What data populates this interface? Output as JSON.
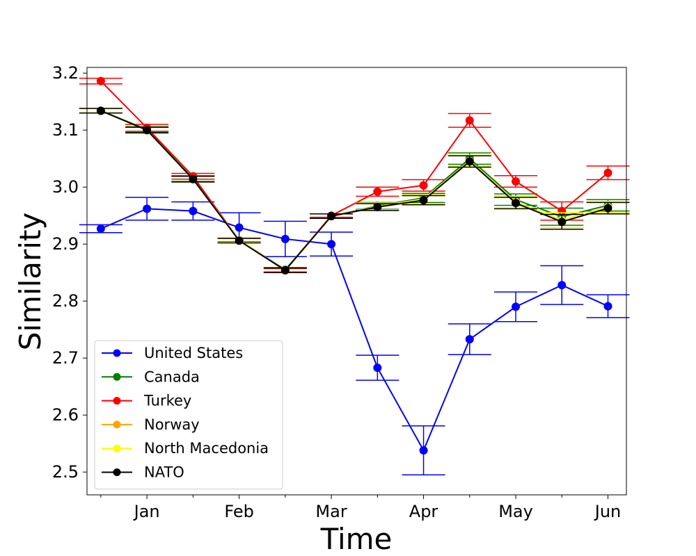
{
  "chart_data": {
    "type": "line",
    "title": "",
    "xlabel": "Time",
    "ylabel": "Similarity",
    "x": [
      0.5,
      1,
      1.5,
      2,
      2.5,
      3,
      3.5,
      4,
      4.5,
      5,
      5.5,
      6
    ],
    "x_ticks": [
      {
        "value": 1,
        "label": "Jan"
      },
      {
        "value": 2,
        "label": "Feb"
      },
      {
        "value": 3,
        "label": "Mar"
      },
      {
        "value": 4,
        "label": "Apr"
      },
      {
        "value": 5,
        "label": "May"
      },
      {
        "value": 6,
        "label": "Jun"
      }
    ],
    "x_minor_ticks": [
      0.5,
      1.5,
      2.5,
      3.5,
      4.5,
      5.5
    ],
    "xlim": [
      0.35,
      6.2
    ],
    "y_ticks": [
      2.5,
      2.6,
      2.7,
      2.8,
      2.9,
      3.0,
      3.1,
      3.2
    ],
    "ylim": [
      2.46,
      3.21
    ],
    "grid": false,
    "legend_position": "lower-left",
    "series": [
      {
        "name": "United States",
        "color": "#0000ff",
        "values": [
          2.927,
          2.962,
          2.958,
          2.929,
          2.909,
          2.9,
          2.683,
          2.538,
          2.733,
          2.79,
          2.828,
          2.791
        ],
        "errors": [
          0.007,
          0.02,
          0.016,
          0.026,
          0.031,
          0.021,
          0.022,
          0.043,
          0.027,
          0.026,
          0.034,
          0.02
        ]
      },
      {
        "name": "Canada",
        "color": "#008000",
        "values": [
          3.134,
          3.101,
          3.015,
          2.907,
          2.855,
          2.949,
          2.967,
          2.981,
          3.05,
          2.978,
          2.948,
          2.968
        ],
        "errors": [
          0.004,
          0.005,
          0.005,
          0.004,
          0.004,
          0.004,
          0.006,
          0.008,
          0.01,
          0.01,
          0.015,
          0.01
        ]
      },
      {
        "name": "Turkey",
        "color": "#ff0000",
        "values": [
          3.186,
          3.104,
          3.019,
          2.907,
          2.854,
          2.95,
          2.992,
          3.003,
          3.117,
          3.01,
          2.958,
          3.025
        ],
        "errors": [
          0.005,
          0.006,
          0.005,
          0.003,
          0.003,
          0.003,
          0.008,
          0.01,
          0.012,
          0.01,
          0.016,
          0.012
        ]
      },
      {
        "name": "Norway",
        "color": "#ffa500",
        "values": [
          3.134,
          3.1,
          3.014,
          2.907,
          2.854,
          2.949,
          2.966,
          2.979,
          3.046,
          2.974,
          2.942,
          2.965
        ],
        "errors": [
          0.004,
          0.005,
          0.005,
          0.004,
          0.004,
          0.004,
          0.006,
          0.008,
          0.01,
          0.01,
          0.013,
          0.01
        ]
      },
      {
        "name": "North Macedonia",
        "color": "#ffff00",
        "values": [
          3.134,
          3.1,
          3.014,
          2.907,
          2.854,
          2.949,
          2.966,
          2.979,
          3.046,
          2.974,
          2.942,
          2.965
        ],
        "errors": [
          0.004,
          0.005,
          0.005,
          0.004,
          0.004,
          0.004,
          0.006,
          0.008,
          0.01,
          0.01,
          0.013,
          0.01
        ]
      },
      {
        "name": "NATO",
        "color": "#000000",
        "values": [
          3.134,
          3.1,
          3.014,
          2.906,
          2.854,
          2.949,
          2.965,
          2.977,
          3.045,
          2.972,
          2.939,
          2.963
        ],
        "errors": [
          0.004,
          0.005,
          0.005,
          0.004,
          0.004,
          0.004,
          0.006,
          0.008,
          0.01,
          0.01,
          0.013,
          0.01
        ]
      }
    ]
  }
}
